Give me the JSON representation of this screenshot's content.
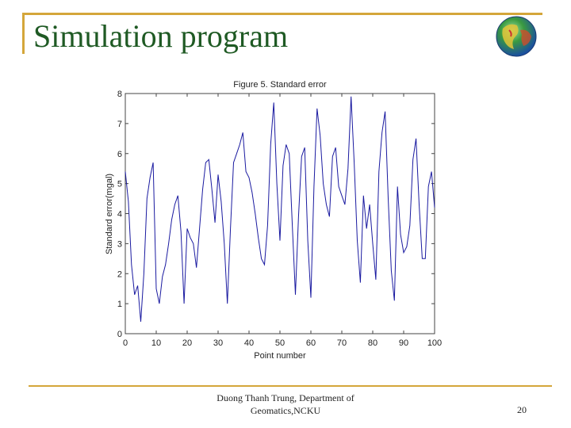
{
  "slide": {
    "title": "Simulation program",
    "footer_line1": "Duong Thanh Trung, Department of",
    "footer_line2": "Geomatics,NCKU",
    "page_number": "20",
    "accent_color": "#d4a63a",
    "title_color": "#1f5a24",
    "logo_icon": "globe-icon"
  },
  "chart_data": {
    "type": "line",
    "title": "Figure 5. Standard error",
    "xlabel": "Point number",
    "ylabel": "Standard error(mgal)",
    "xlim": [
      0,
      100
    ],
    "ylim": [
      0,
      8
    ],
    "xticks": [
      "0",
      "10",
      "20",
      "30",
      "40",
      "50",
      "60",
      "70",
      "80",
      "90",
      "100"
    ],
    "yticks": [
      "0",
      "1",
      "2",
      "3",
      "4",
      "5",
      "6",
      "7",
      "8"
    ],
    "line_color": "#1a1aa0",
    "series": [
      {
        "name": "Standard error",
        "x": [
          0,
          1,
          2,
          3,
          4,
          5,
          6,
          7,
          8,
          9,
          10,
          11,
          12,
          13,
          14,
          15,
          16,
          17,
          18,
          19,
          20,
          21,
          22,
          23,
          24,
          25,
          26,
          27,
          28,
          29,
          30,
          31,
          32,
          33,
          34,
          35,
          36,
          37,
          38,
          39,
          40,
          41,
          42,
          43,
          44,
          45,
          46,
          47,
          48,
          49,
          50,
          51,
          52,
          53,
          54,
          55,
          56,
          57,
          58,
          59,
          60,
          61,
          62,
          63,
          64,
          65,
          66,
          67,
          68,
          69,
          70,
          71,
          72,
          73,
          74,
          75,
          76,
          77,
          78,
          79,
          80,
          81,
          82,
          83,
          84,
          85,
          86,
          87,
          88,
          89,
          90,
          91,
          92,
          93,
          94,
          95,
          96,
          97,
          98,
          99,
          100
        ],
        "values": [
          5.4,
          4.4,
          2.3,
          1.3,
          1.6,
          0.4,
          2.0,
          4.5,
          5.2,
          5.7,
          1.5,
          1.0,
          1.9,
          2.3,
          3.0,
          3.8,
          4.3,
          4.6,
          3.4,
          1.0,
          3.5,
          3.2,
          3.0,
          2.2,
          3.5,
          4.8,
          5.7,
          5.8,
          4.8,
          3.7,
          5.3,
          4.4,
          3.0,
          1.0,
          3.5,
          5.7,
          6.0,
          6.3,
          6.7,
          5.4,
          5.2,
          4.7,
          4.0,
          3.2,
          2.5,
          2.3,
          3.6,
          6.3,
          7.7,
          5.0,
          3.1,
          5.6,
          6.3,
          6.0,
          3.6,
          1.3,
          3.9,
          5.9,
          6.2,
          3.1,
          1.2,
          4.9,
          7.5,
          6.6,
          5.0,
          4.3,
          3.9,
          5.9,
          6.2,
          4.9,
          4.6,
          4.3,
          5.5,
          7.9,
          5.7,
          3.1,
          1.7,
          4.6,
          3.5,
          4.3,
          3.0,
          1.8,
          5.4,
          6.7,
          7.4,
          4.5,
          2.1,
          1.1,
          4.9,
          3.3,
          2.7,
          2.9,
          3.6,
          5.8,
          6.5,
          4.3,
          2.5,
          2.5,
          4.9,
          5.4,
          4.2
        ]
      }
    ]
  }
}
